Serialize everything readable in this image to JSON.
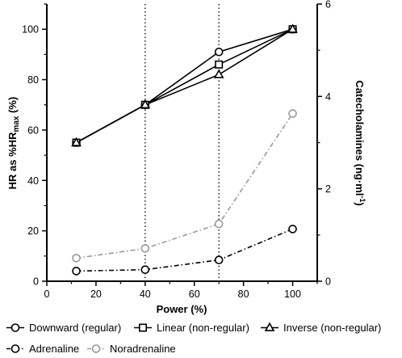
{
  "chart_data": {
    "type": "line",
    "x_label": "Power (%)",
    "y_label_left": {
      "main": "HR as %HR",
      "sub": "max",
      "suffix": " (%)"
    },
    "y_label_right": {
      "main": "Catecholamines (ng·ml",
      "sup": "-1",
      "suffix": ")"
    },
    "x_range": [
      0,
      110
    ],
    "x_ticks": [
      0,
      20,
      40,
      60,
      80,
      100
    ],
    "y_left_range": [
      0,
      110
    ],
    "y_left_ticks": [
      0,
      20,
      40,
      60,
      80,
      100
    ],
    "y_right_range": [
      0,
      6
    ],
    "y_right_ticks": [
      0,
      2,
      4,
      6
    ],
    "reference_lines_x": [
      40,
      70
    ],
    "series": [
      {
        "name": "Downward (regular)",
        "axis": "left",
        "marker": "circle",
        "dash": "solid",
        "color": "#000000",
        "x": [
          12,
          40,
          70,
          100
        ],
        "y": [
          55,
          70,
          91,
          100
        ]
      },
      {
        "name": "Linear (non-regular)",
        "axis": "left",
        "marker": "square",
        "dash": "solid",
        "color": "#000000",
        "x": [
          12,
          40,
          70,
          100
        ],
        "y": [
          55,
          70,
          86,
          100
        ]
      },
      {
        "name": "Inverse (non-regular)",
        "axis": "left",
        "marker": "triangle",
        "dash": "solid",
        "color": "#000000",
        "x": [
          12,
          40,
          70,
          100
        ],
        "y": [
          55,
          70,
          82,
          100
        ]
      },
      {
        "name": "Adrenaline",
        "axis": "right",
        "marker": "circle",
        "dash": "dashdot",
        "color": "#000000",
        "x": [
          12,
          40,
          70,
          100
        ],
        "y": [
          0.22,
          0.25,
          0.46,
          1.13
        ]
      },
      {
        "name": "Noradrenaline",
        "axis": "right",
        "marker": "circle",
        "dash": "dashdot",
        "color": "#999999",
        "x": [
          12,
          40,
          70,
          100
        ],
        "y": [
          0.5,
          0.71,
          1.24,
          3.63
        ]
      }
    ]
  }
}
